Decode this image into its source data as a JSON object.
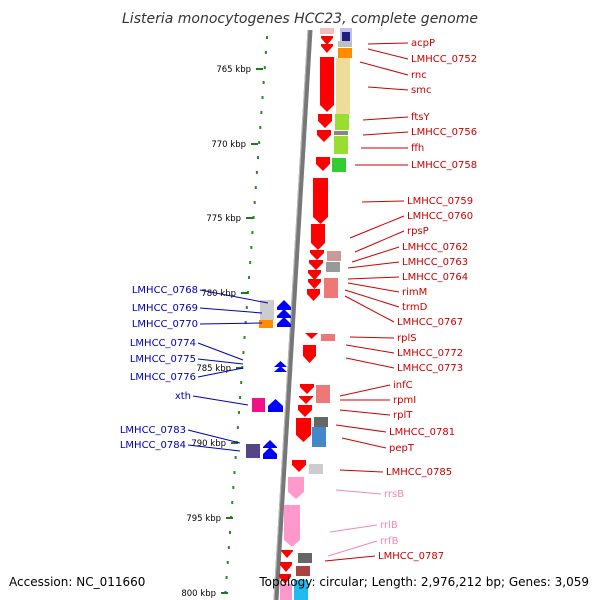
{
  "title": "Listeria monocytogenes HCC23, complete genome",
  "footer": {
    "accession": "Accession: NC_011660",
    "topology": "Topology: circular; Length: 2,976,212 bp; Genes: 3,059"
  },
  "ruler": {
    "ticks": [
      "765 kbp",
      "770 kbp",
      "775 kbp",
      "780 kbp",
      "785 kbp",
      "790 kbp",
      "795 kbp",
      "800 kbp"
    ]
  },
  "colors": {
    "forward": "#ff0000",
    "reverse": "#0000ff",
    "rrna": "#ff8fc8",
    "label_forward": "#cc0000",
    "label_reverse": "#0000bb",
    "label_rrna": "#ee88bb",
    "backbone": "#777777"
  },
  "right_labels": [
    {
      "name": "acpP",
      "type": "gene"
    },
    {
      "name": "LMHCC_0752",
      "type": "gene"
    },
    {
      "name": "rnc",
      "type": "gene"
    },
    {
      "name": "smc",
      "type": "gene"
    },
    {
      "name": "ftsY",
      "type": "gene"
    },
    {
      "name": "LMHCC_0756",
      "type": "gene"
    },
    {
      "name": "ffh",
      "type": "gene"
    },
    {
      "name": "LMHCC_0758",
      "type": "gene"
    },
    {
      "name": "LMHCC_0759",
      "type": "gene"
    },
    {
      "name": "LMHCC_0760",
      "type": "gene"
    },
    {
      "name": "rpsP",
      "type": "gene"
    },
    {
      "name": "LMHCC_0762",
      "type": "gene"
    },
    {
      "name": "LMHCC_0763",
      "type": "gene"
    },
    {
      "name": "LMHCC_0764",
      "type": "gene"
    },
    {
      "name": "rimM",
      "type": "gene"
    },
    {
      "name": "trmD",
      "type": "gene"
    },
    {
      "name": "LMHCC_0767",
      "type": "gene"
    },
    {
      "name": "rplS",
      "type": "gene"
    },
    {
      "name": "LMHCC_0772",
      "type": "gene"
    },
    {
      "name": "LMHCC_0773",
      "type": "gene"
    },
    {
      "name": "infC",
      "type": "gene"
    },
    {
      "name": "rpmI",
      "type": "gene"
    },
    {
      "name": "rplT",
      "type": "gene"
    },
    {
      "name": "LMHCC_0781",
      "type": "gene"
    },
    {
      "name": "pepT",
      "type": "gene"
    },
    {
      "name": "LMHCC_0785",
      "type": "gene"
    },
    {
      "name": "rrsB",
      "type": "rrna"
    },
    {
      "name": "rrlB",
      "type": "rrna"
    },
    {
      "name": "rrfB",
      "type": "rrna"
    },
    {
      "name": "LMHCC_0787",
      "type": "gene"
    }
  ],
  "left_labels": [
    {
      "name": "LMHCC_0768"
    },
    {
      "name": "LMHCC_0769"
    },
    {
      "name": "LMHCC_0770"
    },
    {
      "name": "LMHCC_0774"
    },
    {
      "name": "LMHCC_0775"
    },
    {
      "name": "LMHCC_0776"
    },
    {
      "name": "xth"
    },
    {
      "name": "LMHCC_0783"
    },
    {
      "name": "LMHCC_0784"
    }
  ]
}
